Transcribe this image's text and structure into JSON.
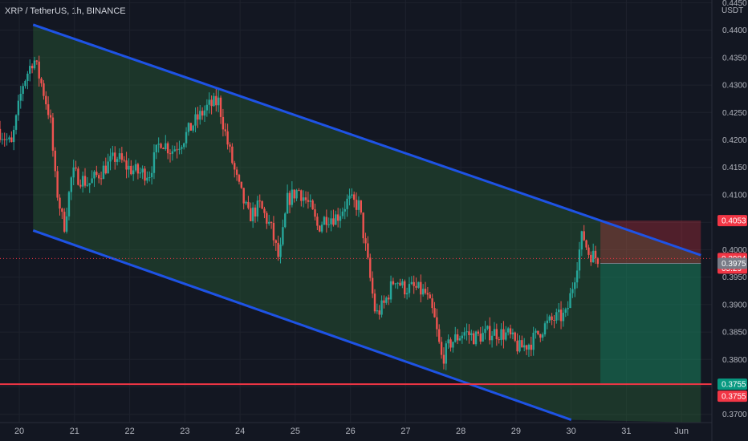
{
  "chart_data": {
    "type": "candlestick",
    "title": "XRP / TetherUS, 1h, BINANCE",
    "y_unit": "USDT",
    "ylim": [
      0.3685,
      0.4455
    ],
    "y_ticks": [
      "0.4450",
      "0.4400",
      "0.4350",
      "0.4300",
      "0.4250",
      "0.4200",
      "0.4150",
      "0.4100",
      "0.4050",
      "0.4000",
      "0.3950",
      "0.3900",
      "0.3850",
      "0.3800",
      "0.3750",
      "0.3700"
    ],
    "x_ticks": [
      {
        "label": "20",
        "day": 20
      },
      {
        "label": "21",
        "day": 21
      },
      {
        "label": "22",
        "day": 22
      },
      {
        "label": "23",
        "day": 23
      },
      {
        "label": "24",
        "day": 24
      },
      {
        "label": "25",
        "day": 25
      },
      {
        "label": "26",
        "day": 26
      },
      {
        "label": "27",
        "day": 27
      },
      {
        "label": "28",
        "day": 28
      },
      {
        "label": "29",
        "day": 29
      },
      {
        "label": "30",
        "day": 30
      },
      {
        "label": "31",
        "day": 31
      },
      {
        "label": "Jun",
        "day": 32
      }
    ],
    "xlim": [
      19.65,
      32.55
    ],
    "close_path": [
      [
        19.65,
        0.422
      ],
      [
        19.9,
        0.419
      ],
      [
        20.1,
        0.43
      ],
      [
        20.3,
        0.435
      ],
      [
        20.45,
        0.43
      ],
      [
        20.6,
        0.424
      ],
      [
        20.7,
        0.412
      ],
      [
        20.85,
        0.404
      ],
      [
        21.0,
        0.414
      ],
      [
        21.3,
        0.412
      ],
      [
        21.6,
        0.415
      ],
      [
        21.8,
        0.417
      ],
      [
        22.0,
        0.415
      ],
      [
        22.2,
        0.414
      ],
      [
        22.4,
        0.414
      ],
      [
        22.6,
        0.42
      ],
      [
        22.8,
        0.418
      ],
      [
        23.0,
        0.42
      ],
      [
        23.2,
        0.423
      ],
      [
        23.45,
        0.426
      ],
      [
        23.65,
        0.427
      ],
      [
        23.8,
        0.42
      ],
      [
        24.0,
        0.412
      ],
      [
        24.2,
        0.406
      ],
      [
        24.4,
        0.408
      ],
      [
        24.6,
        0.404
      ],
      [
        24.75,
        0.398
      ],
      [
        24.9,
        0.409
      ],
      [
        25.1,
        0.411
      ],
      [
        25.3,
        0.408
      ],
      [
        25.45,
        0.404
      ],
      [
        25.6,
        0.406
      ],
      [
        25.8,
        0.406
      ],
      [
        26.0,
        0.409
      ],
      [
        26.2,
        0.408
      ],
      [
        26.35,
        0.398
      ],
      [
        26.5,
        0.388
      ],
      [
        26.65,
        0.39
      ],
      [
        26.85,
        0.395
      ],
      [
        27.0,
        0.393
      ],
      [
        27.2,
        0.393
      ],
      [
        27.4,
        0.392
      ],
      [
        27.55,
        0.388
      ],
      [
        27.7,
        0.38
      ],
      [
        27.85,
        0.383
      ],
      [
        28.1,
        0.385
      ],
      [
        28.3,
        0.384
      ],
      [
        28.6,
        0.385
      ],
      [
        28.9,
        0.3845
      ],
      [
        29.1,
        0.382
      ],
      [
        29.3,
        0.383
      ],
      [
        29.55,
        0.386
      ],
      [
        29.75,
        0.3875
      ],
      [
        29.95,
        0.388
      ],
      [
        30.1,
        0.395
      ],
      [
        30.25,
        0.403
      ],
      [
        30.35,
        0.3995
      ],
      [
        30.5,
        0.3985
      ]
    ],
    "channel": {
      "upper": [
        [
          20.25,
          0.441
        ],
        [
          32.35,
          0.399
        ]
      ],
      "lower": [
        [
          20.25,
          0.4035
        ],
        [
          30.0,
          0.369
        ]
      ]
    },
    "horizontal_line": {
      "price": 0.3755,
      "color": "#f23645"
    },
    "position": {
      "x_start": 30.53,
      "x_end": 32.35,
      "stop": 0.4053,
      "entry": 0.3975,
      "target": 0.3755
    },
    "price_labels": [
      {
        "price": 0.4053,
        "text": "0.4053",
        "color": "#f23645"
      },
      {
        "price": 0.3984,
        "text": "0.3984",
        "sub": "05:29",
        "color": "#f23645"
      },
      {
        "price": 0.3975,
        "text": "0.3975",
        "color": "#787b86"
      },
      {
        "price": 0.3755,
        "text": "0.3755",
        "color": "#089981"
      },
      {
        "price": 0.3755,
        "text": "0.3755",
        "color": "#f23645",
        "below": true
      }
    ],
    "colors": {
      "up": "#26a69a",
      "down": "#ef5350",
      "channel": "#1e53e5",
      "channel_fill": "#2f6f3a",
      "grid": "#1e222d",
      "bg": "#131722"
    }
  }
}
